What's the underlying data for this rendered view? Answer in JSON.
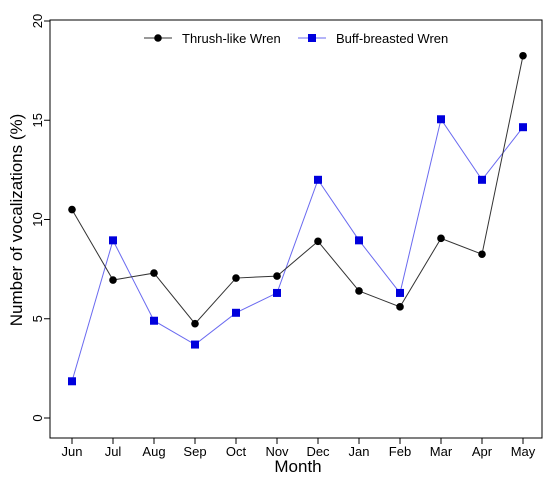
{
  "chart_data": {
    "type": "line",
    "xlabel": "Month",
    "ylabel": "Number of vocalizations (%)",
    "categories": [
      "Jun",
      "Jul",
      "Aug",
      "Sep",
      "Oct",
      "Nov",
      "Dec",
      "Jan",
      "Feb",
      "Mar",
      "Apr",
      "May"
    ],
    "ylim": [
      0,
      20
    ],
    "yticks": [
      "0",
      "5",
      "10",
      "15",
      "20"
    ],
    "grid": false,
    "legend_position": "top",
    "series": [
      {
        "name": "Thrush-like Wren",
        "marker": "circle",
        "color": "#000000",
        "line_color": "#333333",
        "values": [
          10.5,
          6.95,
          7.3,
          4.75,
          7.05,
          7.15,
          8.9,
          6.4,
          5.6,
          9.05,
          8.25,
          18.25
        ]
      },
      {
        "name": "Buff-breasted Wren",
        "marker": "square",
        "color": "#0000dd",
        "line_color": "#6a6af0",
        "values": [
          1.85,
          8.95,
          4.9,
          3.7,
          5.3,
          6.3,
          12.0,
          8.95,
          6.3,
          15.05,
          12.0,
          14.65
        ]
      }
    ]
  }
}
